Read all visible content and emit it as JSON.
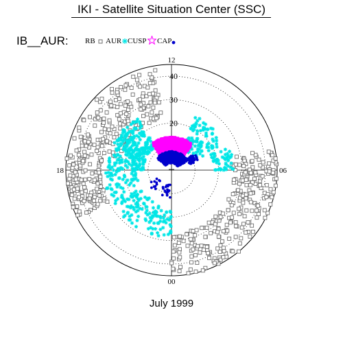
{
  "header": {
    "title": "IKI - Satellite Situation Center (SSC)"
  },
  "legend": {
    "name": "IB__AUR:",
    "entries": [
      {
        "label": "RB",
        "symbol": "open-square",
        "color": "#6e6e6e"
      },
      {
        "label": "AUR",
        "symbol": "asterisk",
        "color": "#00e6e6"
      },
      {
        "label": "CUSP",
        "symbol": "star",
        "color": "#ff00ff"
      },
      {
        "label": "CAP",
        "symbol": "dot",
        "color": "#0000cc"
      }
    ]
  },
  "chart_data": {
    "type": "scatter",
    "projection": "polar (magnetic local time vs. latitude)",
    "mlt_tick_labels": [
      "12",
      "18",
      "06",
      "00"
    ],
    "radial_tick_labels": [
      "40",
      "30",
      "20"
    ],
    "radial_range": [
      0,
      45
    ],
    "grid": "dotted concentric circles",
    "series": [
      {
        "name": "RB",
        "color": "#6e6e6e",
        "marker": "open-square",
        "regions": [
          {
            "mlt": [
              12.6,
              17.2
            ],
            "colat": [
              22,
              44
            ],
            "count": 180
          },
          {
            "mlt": [
              17.2,
              19.8
            ],
            "colat": [
              30,
              45
            ],
            "count": 140
          },
          {
            "mlt": [
              5.0,
              6.8
            ],
            "colat": [
              26,
              45
            ],
            "count": 90
          },
          {
            "mlt": [
              0.0,
              5.0
            ],
            "colat": [
              27,
              45
            ],
            "count": 180
          }
        ]
      },
      {
        "name": "AUR",
        "color": "#00e6e6",
        "marker": "asterisk",
        "regions": [
          {
            "mlt": [
              14.2,
              18.0
            ],
            "colat": [
              12,
              27
            ],
            "count": 260
          },
          {
            "mlt": [
              7.6,
              10.4
            ],
            "colat": [
              10,
              25
            ],
            "count": 110
          },
          {
            "mlt": [
              6.0,
              7.6
            ],
            "colat": [
              18,
              27
            ],
            "count": 50
          },
          {
            "mlt": [
              18.0,
              23.0
            ],
            "colat": [
              15,
              29
            ],
            "count": 150
          },
          {
            "mlt": [
              23.0,
              24.0
            ],
            "colat": [
              17,
              29
            ],
            "count": 30
          }
        ]
      },
      {
        "name": "CUSP",
        "color": "#ff00ff",
        "marker": "star",
        "regions": [
          {
            "mlt": [
              9.4,
              14.4
            ],
            "colat": [
              8,
              14
            ],
            "count": 900
          }
        ]
      },
      {
        "name": "CAP",
        "color": "#0000cc",
        "marker": "dot",
        "regions": [
          {
            "mlt": [
              8.0,
              15.4
            ],
            "colat": [
              3,
              8
            ],
            "count": 560
          },
          {
            "mlt": [
              7.2,
              8.4
            ],
            "colat": [
              8,
              12
            ],
            "count": 40
          },
          {
            "mlt": [
              20.0,
              23.8
            ],
            "colat": [
              6,
              12
            ],
            "count": 30
          }
        ]
      }
    ]
  },
  "footer": {
    "date_label": "July 1999"
  }
}
